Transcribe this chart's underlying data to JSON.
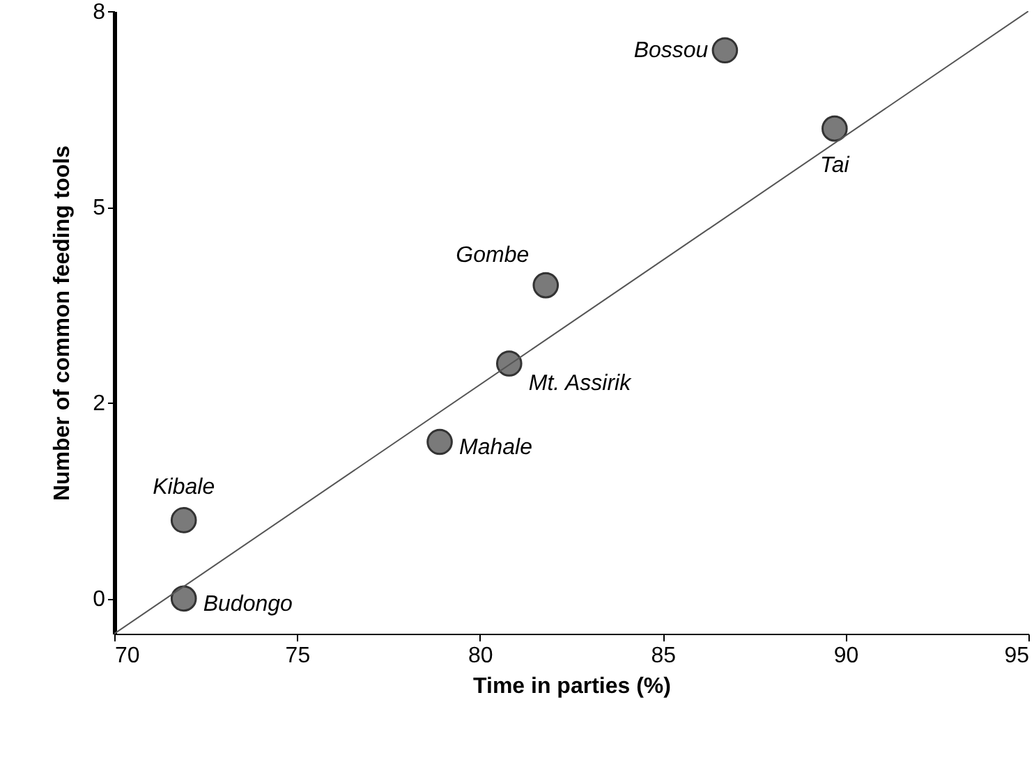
{
  "chart_data": {
    "type": "scatter",
    "xlabel": "Time in parties (%)",
    "ylabel": "Number of common feeding tools",
    "xlim": [
      70,
      95
    ],
    "xticks": [
      70,
      75,
      80,
      85,
      90,
      95
    ],
    "ylim": [
      -0.45,
      7.5
    ],
    "yticks": [
      0,
      {
        "value": 2.5,
        "label": "2"
      },
      5,
      {
        "value": 7.5,
        "label": "8"
      }
    ],
    "grid": false,
    "marker": "circle",
    "series": [
      {
        "color": "#7a7a7a",
        "x": [
          86.7,
          89.7,
          81.8,
          80.8,
          78.9,
          71.9,
          71.9
        ],
        "values": [
          7.0,
          6.0,
          4.0,
          3.0,
          2.0,
          1.0,
          0
        ]
      },
      {
        "type": "line",
        "marker": "none",
        "color": "#555555",
        "x": [
          70,
          95
        ],
        "values": [
          -0.45,
          7.5
        ]
      }
    ],
    "annotations": [
      {
        "text": "Bossou",
        "x": 86.7,
        "y": 7.0
      },
      {
        "text": "Tai",
        "x": 89.7,
        "y": 6.0
      },
      {
        "text": "Gombe",
        "x": 81.8,
        "y": 4.0
      },
      {
        "text": "Mt. Assirik",
        "x": 80.8,
        "y": 3.0
      },
      {
        "text": "Mahale",
        "x": 78.9,
        "y": 2.0
      },
      {
        "text": "Kibale",
        "x": 71.9,
        "y": 1.0
      },
      {
        "text": "Budongo",
        "x": 71.9,
        "y": 0
      }
    ]
  }
}
